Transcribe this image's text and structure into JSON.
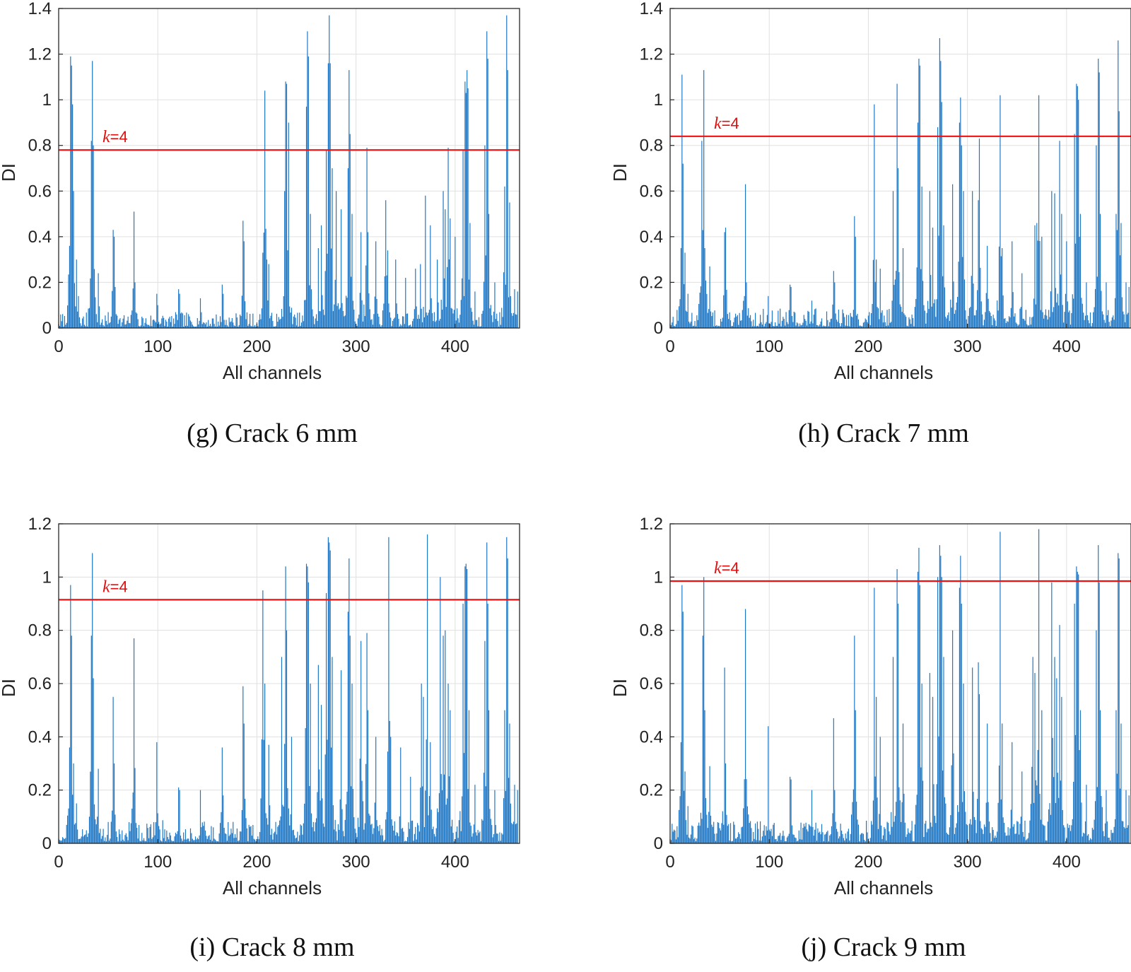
{
  "style": {
    "bar_color": "#1f77c4",
    "threshold_color": "#ee1111",
    "grid_color": "#e0e0e0"
  },
  "chart_data": [
    {
      "type": "bar",
      "panel": "g",
      "caption": "(g) Crack 6 mm",
      "xlabel": "All channels",
      "ylabel": "DI",
      "xlim": [
        0,
        465
      ],
      "ylim": [
        0,
        1.4
      ],
      "xticks": [
        0,
        100,
        200,
        300,
        400
      ],
      "yticks": [
        0,
        0.2,
        0.4,
        0.6,
        0.8,
        1,
        1.2,
        1.4
      ],
      "yticklabels": [
        "0",
        "0.2",
        "0.4",
        "0.6",
        "0.8",
        "1",
        "1.2",
        "1.4"
      ],
      "grid": true,
      "threshold": {
        "label_k": "k",
        "label_rest": "=4",
        "value": 0.78
      },
      "seed": 7,
      "base_noise": 0.04,
      "peaks": [
        [
          12,
          1.19
        ],
        [
          13,
          1.15
        ],
        [
          14,
          0.98
        ],
        [
          11,
          0.36
        ],
        [
          15,
          0.6
        ],
        [
          18,
          0.3
        ],
        [
          20,
          0.14
        ],
        [
          33,
          0.82
        ],
        [
          34,
          1.17
        ],
        [
          35,
          0.8
        ],
        [
          40,
          0.24
        ],
        [
          55,
          0.43
        ],
        [
          56,
          0.4
        ],
        [
          57,
          0.18
        ],
        [
          76,
          0.51
        ],
        [
          77,
          0.2
        ],
        [
          99,
          0.15
        ],
        [
          100,
          0.1
        ],
        [
          121,
          0.17
        ],
        [
          122,
          0.15
        ],
        [
          143,
          0.13
        ],
        [
          165,
          0.19
        ],
        [
          166,
          0.15
        ],
        [
          186,
          0.47
        ],
        [
          187,
          0.38
        ],
        [
          206,
          0.33
        ],
        [
          208,
          1.04
        ],
        [
          210,
          0.3
        ],
        [
          212,
          0.28
        ],
        [
          228,
          0.6
        ],
        [
          229,
          1.08
        ],
        [
          230,
          1.07
        ],
        [
          232,
          0.9
        ],
        [
          250,
          0.97
        ],
        [
          251,
          1.3
        ],
        [
          252,
          1.19
        ],
        [
          254,
          0.5
        ],
        [
          262,
          0.35
        ],
        [
          265,
          0.45
        ],
        [
          270,
          0.78
        ],
        [
          272,
          1.16
        ],
        [
          273,
          1.37
        ],
        [
          274,
          1.16
        ],
        [
          276,
          0.7
        ],
        [
          280,
          0.6
        ],
        [
          285,
          0.52
        ],
        [
          292,
          0.7
        ],
        [
          293,
          1.13
        ],
        [
          294,
          0.85
        ],
        [
          296,
          0.5
        ],
        [
          305,
          0.42
        ],
        [
          311,
          0.79
        ],
        [
          312,
          0.42
        ],
        [
          320,
          0.38
        ],
        [
          330,
          0.56
        ],
        [
          332,
          0.34
        ],
        [
          340,
          0.3
        ],
        [
          350,
          0.22
        ],
        [
          360,
          0.26
        ],
        [
          365,
          0.28
        ],
        [
          370,
          0.58
        ],
        [
          375,
          0.45
        ],
        [
          382,
          0.3
        ],
        [
          388,
          0.6
        ],
        [
          390,
          0.52
        ],
        [
          393,
          0.79
        ],
        [
          395,
          0.48
        ],
        [
          400,
          0.4
        ],
        [
          408,
          0.78
        ],
        [
          410,
          1.08
        ],
        [
          411,
          1.03
        ],
        [
          412,
          1.13
        ],
        [
          413,
          1.05
        ],
        [
          415,
          0.46
        ],
        [
          420,
          0.16
        ],
        [
          430,
          0.8
        ],
        [
          432,
          1.3
        ],
        [
          433,
          1.18
        ],
        [
          434,
          0.5
        ],
        [
          440,
          0.2
        ],
        [
          450,
          0.62
        ],
        [
          452,
          1.37
        ],
        [
          453,
          1.13
        ],
        [
          455,
          0.55
        ],
        [
          460,
          0.17
        ],
        [
          463,
          0.16
        ]
      ]
    },
    {
      "type": "bar",
      "panel": "h",
      "caption": "(h) Crack 7 mm",
      "xlabel": "All channels",
      "ylabel": "DI",
      "xlim": [
        0,
        465
      ],
      "ylim": [
        0,
        1.4
      ],
      "xticks": [
        0,
        100,
        200,
        300,
        400
      ],
      "yticks": [
        0,
        0.2,
        0.4,
        0.6,
        0.8,
        1,
        1.2,
        1.4
      ],
      "yticklabels": [
        "0",
        "0.2",
        "0.4",
        "0.6",
        "0.8",
        "1",
        "1.2",
        "1.4"
      ],
      "grid": true,
      "threshold": {
        "label_k": "k",
        "label_rest": "=4",
        "value": 0.84
      },
      "seed": 13,
      "base_noise": 0.05,
      "peaks": [
        [
          11,
          0.35
        ],
        [
          12,
          1.11
        ],
        [
          13,
          0.72
        ],
        [
          15,
          0.33
        ],
        [
          18,
          0.15
        ],
        [
          32,
          0.82
        ],
        [
          34,
          1.13
        ],
        [
          35,
          0.35
        ],
        [
          40,
          0.27
        ],
        [
          55,
          0.42
        ],
        [
          56,
          0.44
        ],
        [
          76,
          0.63
        ],
        [
          77,
          0.2
        ],
        [
          99,
          0.14
        ],
        [
          121,
          0.19
        ],
        [
          122,
          0.18
        ],
        [
          143,
          0.12
        ],
        [
          165,
          0.25
        ],
        [
          166,
          0.2
        ],
        [
          186,
          0.49
        ],
        [
          187,
          0.4
        ],
        [
          206,
          0.98
        ],
        [
          208,
          0.3
        ],
        [
          212,
          0.26
        ],
        [
          225,
          0.6
        ],
        [
          229,
          1.07
        ],
        [
          230,
          0.7
        ],
        [
          235,
          0.35
        ],
        [
          250,
          0.9
        ],
        [
          251,
          1.18
        ],
        [
          252,
          1.15
        ],
        [
          254,
          0.62
        ],
        [
          262,
          0.6
        ],
        [
          265,
          0.44
        ],
        [
          270,
          0.88
        ],
        [
          272,
          1.27
        ],
        [
          273,
          1.17
        ],
        [
          274,
          0.99
        ],
        [
          276,
          0.45
        ],
        [
          285,
          0.63
        ],
        [
          292,
          0.9
        ],
        [
          293,
          1.01
        ],
        [
          294,
          0.8
        ],
        [
          296,
          0.6
        ],
        [
          305,
          0.6
        ],
        [
          311,
          0.56
        ],
        [
          312,
          0.83
        ],
        [
          320,
          0.36
        ],
        [
          333,
          1.02
        ],
        [
          335,
          0.35
        ],
        [
          345,
          0.38
        ],
        [
          355,
          0.24
        ],
        [
          368,
          0.45
        ],
        [
          370,
          0.46
        ],
        [
          372,
          1.02
        ],
        [
          375,
          0.4
        ],
        [
          385,
          0.6
        ],
        [
          388,
          0.59
        ],
        [
          393,
          0.82
        ],
        [
          395,
          0.5
        ],
        [
          400,
          0.38
        ],
        [
          408,
          0.85
        ],
        [
          410,
          1.07
        ],
        [
          411,
          1.06
        ],
        [
          412,
          1.0
        ],
        [
          414,
          0.5
        ],
        [
          420,
          0.2
        ],
        [
          430,
          0.8
        ],
        [
          432,
          1.18
        ],
        [
          433,
          1.12
        ],
        [
          434,
          0.5
        ],
        [
          440,
          0.2
        ],
        [
          450,
          0.5
        ],
        [
          452,
          1.26
        ],
        [
          453,
          0.95
        ],
        [
          455,
          0.46
        ],
        [
          460,
          0.2
        ],
        [
          463,
          0.18
        ]
      ]
    },
    {
      "type": "bar",
      "panel": "i",
      "caption": "(i) Crack 8 mm",
      "xlabel": "All channels",
      "ylabel": "DI",
      "xlim": [
        0,
        465
      ],
      "ylim": [
        0,
        1.2
      ],
      "xticks": [
        0,
        100,
        200,
        300,
        400
      ],
      "yticks": [
        0,
        0.2,
        0.4,
        0.6,
        0.8,
        1,
        1.2
      ],
      "yticklabels": [
        "0",
        "0.2",
        "0.4",
        "0.6",
        "0.8",
        "1",
        "1.2"
      ],
      "grid": true,
      "threshold": {
        "label_k": "k",
        "label_rest": "=4",
        "value": 0.915
      },
      "seed": 21,
      "base_noise": 0.05,
      "peaks": [
        [
          11,
          0.36
        ],
        [
          12,
          0.97
        ],
        [
          13,
          0.78
        ],
        [
          15,
          0.3
        ],
        [
          18,
          0.15
        ],
        [
          33,
          0.78
        ],
        [
          34,
          1.09
        ],
        [
          35,
          0.62
        ],
        [
          40,
          0.28
        ],
        [
          55,
          0.55
        ],
        [
          56,
          0.3
        ],
        [
          76,
          0.77
        ],
        [
          77,
          0.2
        ],
        [
          99,
          0.38
        ],
        [
          121,
          0.21
        ],
        [
          122,
          0.2
        ],
        [
          143,
          0.2
        ],
        [
          165,
          0.36
        ],
        [
          166,
          0.18
        ],
        [
          186,
          0.59
        ],
        [
          187,
          0.45
        ],
        [
          206,
          0.95
        ],
        [
          208,
          0.6
        ],
        [
          212,
          0.37
        ],
        [
          225,
          0.7
        ],
        [
          229,
          1.04
        ],
        [
          230,
          0.8
        ],
        [
          235,
          0.4
        ],
        [
          250,
          1.05
        ],
        [
          251,
          1.04
        ],
        [
          252,
          0.98
        ],
        [
          254,
          0.6
        ],
        [
          262,
          0.67
        ],
        [
          265,
          0.52
        ],
        [
          270,
          0.94
        ],
        [
          272,
          1.15
        ],
        [
          273,
          1.13
        ],
        [
          274,
          1.1
        ],
        [
          276,
          0.7
        ],
        [
          285,
          0.65
        ],
        [
          292,
          0.87
        ],
        [
          293,
          1.07
        ],
        [
          294,
          0.78
        ],
        [
          296,
          0.6
        ],
        [
          305,
          0.76
        ],
        [
          311,
          0.79
        ],
        [
          312,
          0.5
        ],
        [
          320,
          0.4
        ],
        [
          333,
          1.15
        ],
        [
          335,
          0.4
        ],
        [
          345,
          0.36
        ],
        [
          355,
          0.25
        ],
        [
          366,
          0.6
        ],
        [
          368,
          0.55
        ],
        [
          372,
          1.16
        ],
        [
          375,
          0.38
        ],
        [
          385,
          1.0
        ],
        [
          388,
          0.78
        ],
        [
          390,
          0.8
        ],
        [
          393,
          0.6
        ],
        [
          395,
          0.5
        ],
        [
          408,
          0.9
        ],
        [
          410,
          1.04
        ],
        [
          411,
          1.05
        ],
        [
          412,
          1.03
        ],
        [
          414,
          0.5
        ],
        [
          420,
          0.22
        ],
        [
          430,
          0.76
        ],
        [
          432,
          1.13
        ],
        [
          433,
          0.9
        ],
        [
          434,
          0.5
        ],
        [
          440,
          0.2
        ],
        [
          450,
          0.5
        ],
        [
          452,
          1.15
        ],
        [
          453,
          1.07
        ],
        [
          455,
          0.45
        ],
        [
          460,
          0.22
        ],
        [
          463,
          0.2
        ]
      ]
    },
    {
      "type": "bar",
      "panel": "j",
      "caption": "(j) Crack 9 mm",
      "xlabel": "All channels",
      "ylabel": "DI",
      "xlim": [
        0,
        465
      ],
      "ylim": [
        0,
        1.2
      ],
      "xticks": [
        0,
        100,
        200,
        300,
        400
      ],
      "yticks": [
        0,
        0.2,
        0.4,
        0.6,
        0.8,
        1,
        1.2
      ],
      "yticklabels": [
        "0",
        "0.2",
        "0.4",
        "0.6",
        "0.8",
        "1",
        "1.2"
      ],
      "grid": true,
      "threshold": {
        "label_k": "k",
        "label_rest": "=4",
        "value": 0.985
      },
      "seed": 29,
      "base_noise": 0.05,
      "peaks": [
        [
          11,
          0.38
        ],
        [
          12,
          0.97
        ],
        [
          13,
          0.87
        ],
        [
          15,
          0.27
        ],
        [
          18,
          0.14
        ],
        [
          33,
          0.78
        ],
        [
          34,
          1.0
        ],
        [
          35,
          0.5
        ],
        [
          40,
          0.29
        ],
        [
          55,
          0.66
        ],
        [
          56,
          0.3
        ],
        [
          76,
          0.88
        ],
        [
          77,
          0.22
        ],
        [
          99,
          0.44
        ],
        [
          121,
          0.25
        ],
        [
          122,
          0.24
        ],
        [
          143,
          0.2
        ],
        [
          165,
          0.47
        ],
        [
          166,
          0.2
        ],
        [
          186,
          0.78
        ],
        [
          187,
          0.5
        ],
        [
          206,
          0.96
        ],
        [
          208,
          0.55
        ],
        [
          212,
          0.4
        ],
        [
          225,
          0.7
        ],
        [
          229,
          1.03
        ],
        [
          230,
          0.9
        ],
        [
          235,
          0.45
        ],
        [
          250,
          1.02
        ],
        [
          251,
          1.11
        ],
        [
          252,
          0.97
        ],
        [
          254,
          0.6
        ],
        [
          262,
          0.64
        ],
        [
          265,
          0.55
        ],
        [
          270,
          1.0
        ],
        [
          272,
          1.12
        ],
        [
          273,
          1.08
        ],
        [
          274,
          1.0
        ],
        [
          276,
          0.7
        ],
        [
          285,
          0.8
        ],
        [
          292,
          0.96
        ],
        [
          293,
          1.08
        ],
        [
          294,
          0.9
        ],
        [
          296,
          0.6
        ],
        [
          305,
          0.66
        ],
        [
          311,
          0.68
        ],
        [
          312,
          0.56
        ],
        [
          320,
          0.45
        ],
        [
          333,
          1.17
        ],
        [
          335,
          0.45
        ],
        [
          345,
          0.38
        ],
        [
          355,
          0.27
        ],
        [
          366,
          0.7
        ],
        [
          368,
          0.64
        ],
        [
          372,
          1.18
        ],
        [
          375,
          0.5
        ],
        [
          385,
          0.98
        ],
        [
          388,
          0.7
        ],
        [
          390,
          0.62
        ],
        [
          393,
          0.82
        ],
        [
          395,
          0.55
        ],
        [
          408,
          0.9
        ],
        [
          410,
          1.04
        ],
        [
          411,
          1.02
        ],
        [
          412,
          1.01
        ],
        [
          414,
          0.5
        ],
        [
          420,
          0.22
        ],
        [
          430,
          0.8
        ],
        [
          432,
          1.12
        ],
        [
          433,
          0.98
        ],
        [
          434,
          0.5
        ],
        [
          440,
          0.2
        ],
        [
          450,
          0.5
        ],
        [
          452,
          1.09
        ],
        [
          453,
          1.07
        ],
        [
          455,
          0.45
        ],
        [
          460,
          0.2
        ],
        [
          463,
          0.18
        ]
      ]
    }
  ]
}
